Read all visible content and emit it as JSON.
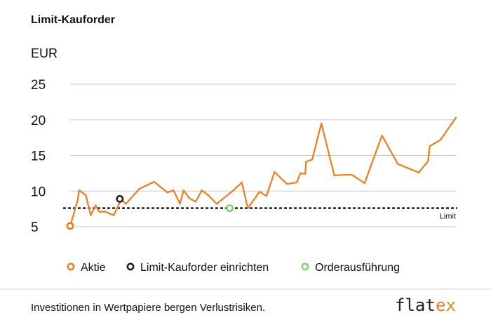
{
  "chart_data": {
    "type": "line",
    "title": "Limit-Kauforder",
    "unit_label": "EUR",
    "ylim": [
      5,
      25
    ],
    "yticks": [
      5,
      10,
      15,
      20,
      25
    ],
    "grid": true,
    "limit": {
      "value": 7.6,
      "label": "Limit"
    },
    "series": [
      {
        "name": "Aktie",
        "color": "#f07f22",
        "points": [
          [
            0,
            5.1
          ],
          [
            0.9,
            6.8
          ],
          [
            1.9,
            8.8
          ],
          [
            2.2,
            10.1
          ],
          [
            3.9,
            9.4
          ],
          [
            5.1,
            6.6
          ],
          [
            6.3,
            8.0
          ],
          [
            7.2,
            7.1
          ],
          [
            8.7,
            7.1
          ],
          [
            10.8,
            6.6
          ],
          [
            12.6,
            8.8
          ],
          [
            13.8,
            8.2
          ],
          [
            17.1,
            10.3
          ],
          [
            20.8,
            11.3
          ],
          [
            24.1,
            9.8
          ],
          [
            25.6,
            10.1
          ],
          [
            27.2,
            8.2
          ],
          [
            28.1,
            10.1
          ],
          [
            29.5,
            9.0
          ],
          [
            31.1,
            8.5
          ],
          [
            32.6,
            10.1
          ],
          [
            34.2,
            9.4
          ],
          [
            36.3,
            8.2
          ],
          [
            40.4,
            10.1
          ],
          [
            42.5,
            11.2
          ],
          [
            44.0,
            7.6
          ],
          [
            46.9,
            9.9
          ],
          [
            48.6,
            9.3
          ],
          [
            50.6,
            12.7
          ],
          [
            52.5,
            11.6
          ],
          [
            53.7,
            11.0
          ],
          [
            56.1,
            11.2
          ],
          [
            57.0,
            12.5
          ],
          [
            58.2,
            12.4
          ],
          [
            58.4,
            14.1
          ],
          [
            59.9,
            14.4
          ],
          [
            62.2,
            19.5
          ],
          [
            65.4,
            12.2
          ],
          [
            69.7,
            12.3
          ],
          [
            72.9,
            11.1
          ],
          [
            77.2,
            17.8
          ],
          [
            81.1,
            13.8
          ],
          [
            86.3,
            12.6
          ],
          [
            88.6,
            14.2
          ],
          [
            89.0,
            16.3
          ],
          [
            91.7,
            17.2
          ],
          [
            95.5,
            20.3
          ]
        ]
      }
    ],
    "markers": [
      {
        "name": "Aktie",
        "x": 0,
        "y": 5.1,
        "color": "#f07f22"
      },
      {
        "name": "Limit-Kauforder einrichten",
        "x": 12.3,
        "y": 8.9,
        "color": "#222222"
      },
      {
        "name": "Orderausführung",
        "x": 39.5,
        "y": 7.6,
        "color": "#7fd46f"
      }
    ],
    "legend": {
      "position": "bottom",
      "items": [
        {
          "label": "Aktie",
          "color": "#f07f22"
        },
        {
          "label": "Limit-Kauforder einrichten",
          "color": "#222222"
        },
        {
          "label": "Orderausführung",
          "color": "#7fd46f"
        }
      ]
    }
  },
  "footer": {
    "disclaimer": "Investitionen in Wertpapiere bergen Verlustrisiken.",
    "logo_text_main": "flat",
    "logo_text_accent": "ex",
    "logo_accent_color": "#f07f22"
  }
}
